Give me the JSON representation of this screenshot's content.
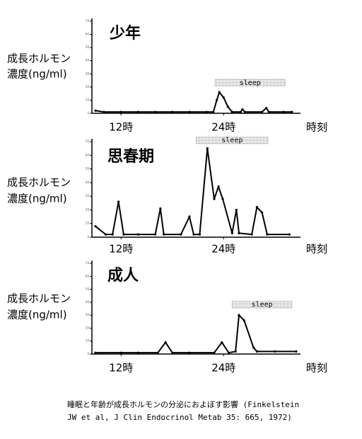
{
  "chart_data": [
    {
      "type": "line",
      "title": "少年",
      "ylabel": [
        "成長ホルモン",
        "濃度(ng/ml)"
      ],
      "xlabel": "時刻",
      "color": "#000000",
      "x": [
        9,
        10,
        12,
        14,
        16,
        18,
        20,
        22,
        22.8,
        23.2,
        23.5,
        24,
        24.5,
        25,
        26,
        26.2,
        26.5,
        28.5,
        29,
        29.3,
        31,
        32
      ],
      "values": [
        2,
        1,
        1,
        1,
        1,
        1,
        1,
        1,
        1,
        10,
        16,
        12,
        5,
        1,
        1,
        3,
        1,
        1,
        4,
        1,
        1,
        1
      ],
      "xlim": [
        9,
        33
      ],
      "xticks": [
        {
          "value": 12,
          "label": "12時"
        },
        {
          "value": 24,
          "label": "24時"
        }
      ],
      "ylim": [
        0,
        70
      ],
      "yticks": [
        0,
        10,
        20,
        30,
        40,
        50,
        60,
        70
      ],
      "sleep": {
        "label": "sleep",
        "start": 23,
        "end": 31.2
      }
    },
    {
      "type": "line",
      "title": "思春期",
      "ylabel": [
        "成長ホルモン",
        "濃度(ng/ml)"
      ],
      "xlabel": "時刻",
      "color": "#000000",
      "x": [
        9,
        10.2,
        11,
        11.7,
        12.3,
        14,
        16,
        16.6,
        17,
        19,
        20,
        20.5,
        21.2,
        22.1,
        22.9,
        23.4,
        23.9,
        25,
        25.5,
        25.8,
        27.3,
        27.9,
        28.5,
        29.1,
        31.7
      ],
      "values": [
        8,
        2,
        2,
        26,
        2,
        2,
        2,
        21,
        2,
        2,
        15,
        2,
        2,
        65,
        28,
        37,
        28,
        3,
        20,
        3,
        2,
        22,
        18,
        2,
        2
      ],
      "xlim": [
        9,
        33
      ],
      "xticks": [
        {
          "value": 12,
          "label": "12時"
        },
        {
          "value": 24,
          "label": "24時"
        }
      ],
      "ylim": [
        0,
        70
      ],
      "yticks": [
        0,
        10,
        20,
        30,
        40,
        50,
        60,
        70
      ],
      "sleep": {
        "label": "sleep",
        "start": 20.8,
        "end": 29.2
      }
    },
    {
      "type": "line",
      "title": "成人",
      "ylabel": [
        "成長ホルモン",
        "濃度(ng/ml)"
      ],
      "xlabel": "時刻",
      "color": "#000000",
      "x": [
        9,
        12,
        14,
        16.3,
        17.2,
        18,
        20,
        22.9,
        23.8,
        24.6,
        25.4,
        25.8,
        26.4,
        27.5,
        27.9,
        30,
        32.5
      ],
      "values": [
        1,
        1,
        1,
        1,
        9,
        1,
        1,
        1,
        9,
        1,
        2,
        30,
        26,
        5,
        2,
        2,
        2
      ],
      "xlim": [
        9,
        33
      ],
      "xticks": [
        {
          "value": 12,
          "label": "12時"
        },
        {
          "value": 24,
          "label": "24時"
        }
      ],
      "ylim": [
        0,
        70
      ],
      "yticks": [
        0,
        10,
        20,
        30,
        40,
        50,
        60,
        70
      ],
      "sleep": {
        "label": "sleep",
        "start": 25,
        "end": 32
      }
    }
  ],
  "caption": [
    "睡眠と年齢が成長ホルモンの分泌におよぼす影響 (Finkelstein",
    "JW et al, J Clin Endocrinol Metab 35: 665, 1972)"
  ]
}
